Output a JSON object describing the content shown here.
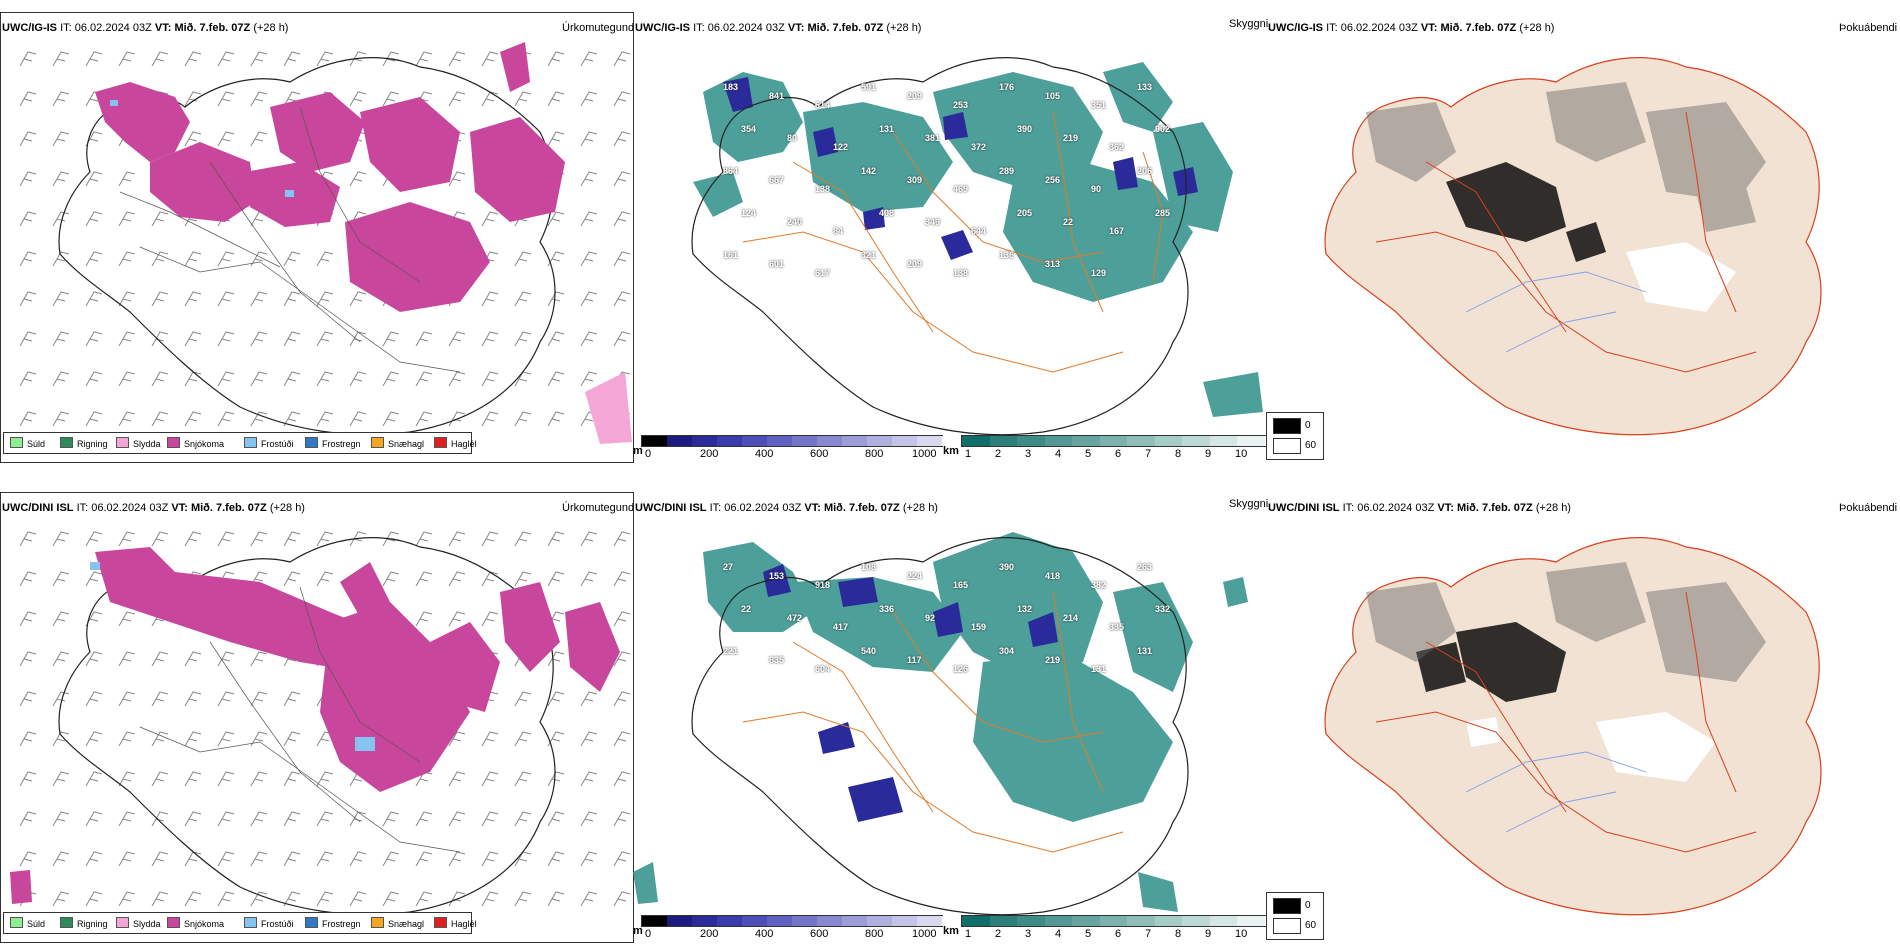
{
  "panels": [
    {
      "row": "top",
      "precip": {
        "model": "UWC/IG-IS",
        "it_label": "IT:",
        "it_value": "06.02.2024 03Z",
        "vt_label": "VT:",
        "vt_value": "Mið. 7.feb. 07Z",
        "lead": "(+28 h)",
        "title": "Úrkomutegund"
      },
      "cloud": {
        "model": "UWC/IG-IS",
        "it_label": "IT:",
        "it_value": "06.02.2024 03Z",
        "vt_label": "VT:",
        "vt_value": "Mið. 7.feb. 07Z",
        "lead": "(+28 h)",
        "title": "Skyggni",
        "labels": [
          "183",
          "841",
          "614",
          "591",
          "209",
          "253",
          "176",
          "105",
          "351",
          "133",
          "354",
          "80",
          "122",
          "131",
          "381",
          "372",
          "390",
          "219",
          "362",
          "902",
          "864",
          "667",
          "138",
          "142",
          "309",
          "469",
          "289",
          "256",
          "90",
          "206",
          "124",
          "240",
          "84",
          "408",
          "349",
          "644",
          "205",
          "22",
          "167",
          "285",
          "161",
          "601",
          "617",
          "321",
          "209",
          "138",
          "136",
          "313",
          "129"
        ]
      },
      "fog": {
        "model": "UWC/IG-IS",
        "it_label": "IT:",
        "it_value": "06.02.2024 03Z",
        "vt_label": "VT:",
        "vt_value": "Mið. 7.feb. 07Z",
        "lead": "(+28 h)",
        "title": "Þokuábendi"
      }
    },
    {
      "row": "bottom",
      "precip": {
        "model": "UWC/DINI ISL",
        "it_label": "IT:",
        "it_value": "06.02.2024 03Z",
        "vt_label": "VT:",
        "vt_value": "Mið. 7.feb. 07Z",
        "lead": "(+28 h)",
        "title": "Úrkomutegund"
      },
      "cloud": {
        "model": "UWC/DINI ISL",
        "it_label": "IT:",
        "it_value": "06.02.2024 03Z",
        "vt_label": "VT:",
        "vt_value": "Mið. 7.feb. 07Z",
        "lead": "(+28 h)",
        "title": "Skyggni",
        "labels": [
          "27",
          "153",
          "918",
          "108",
          "224",
          "165",
          "390",
          "418",
          "382",
          "263",
          "22",
          "472",
          "417",
          "336",
          "92",
          "159",
          "132",
          "214",
          "335",
          "332",
          "221",
          "835",
          "604",
          "540",
          "117",
          "126",
          "304",
          "219",
          "131",
          "131"
        ]
      },
      "fog": {
        "model": "UWC/DINI ISL",
        "it_label": "IT:",
        "it_value": "06.02.2024 03Z",
        "vt_label": "VT:",
        "vt_value": "Mið. 7.feb. 07Z",
        "lead": "(+28 h)",
        "title": "Þokuábendi"
      }
    }
  ],
  "precip_legend": [
    {
      "label": "Súld",
      "color": "#90ee90"
    },
    {
      "label": "Rigning",
      "color": "#2e8b57"
    },
    {
      "label": "Slydda",
      "color": "#f4a6d7"
    },
    {
      "label": "Snjókoma",
      "color": "#c8479c"
    },
    {
      "label": "Frostúði",
      "color": "#87c3f0"
    },
    {
      "label": "Frostregn",
      "color": "#2f78c4"
    },
    {
      "label": "Snæhagl",
      "color": "#f5a623"
    },
    {
      "label": "Haglél",
      "color": "#e02020"
    }
  ],
  "ceiling_scale": {
    "unit": "m",
    "ticks": [
      "0",
      "200",
      "400",
      "600",
      "800",
      "1000"
    ],
    "colors": [
      "#000000",
      "#1b1b80",
      "#2a2a9a",
      "#3b3bae",
      "#4e4eb8",
      "#6060c0",
      "#7474c8",
      "#8888d0",
      "#9c9cd8",
      "#b0b0e0",
      "#c4c4e8",
      "#d8d8f0"
    ]
  },
  "visibility_scale": {
    "unit": "km",
    "ticks": [
      "1",
      "2",
      "3",
      "4",
      "5",
      "6",
      "7",
      "8",
      "9",
      "10"
    ],
    "colors": [
      "#0f6e6a",
      "#2d7f7a",
      "#3f8c87",
      "#529893",
      "#66a59f",
      "#7bb2ad",
      "#90bfba",
      "#a6ccc8",
      "#bcd9d6",
      "#d3e7e5",
      "#e9f3f2"
    ]
  },
  "fog_legend": [
    {
      "label": "0",
      "color": "#000000"
    },
    {
      "label": "60",
      "color": "#ffffff"
    }
  ],
  "colors": {
    "snow": "#c8479c",
    "cloud_teal": "#2e8f88",
    "cloud_blue": "#2a2a9a",
    "road_orange": "#e07a2a",
    "land_beige": "#f1e2d3",
    "road_red": "#d9401c",
    "river_blue": "#7f9fe8"
  }
}
